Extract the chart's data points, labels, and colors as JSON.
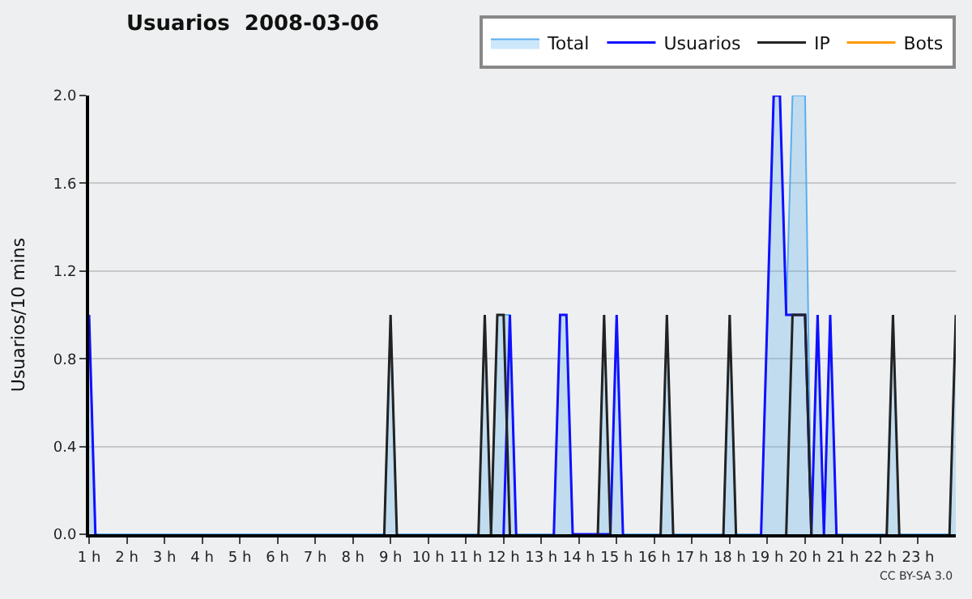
{
  "chart_data": {
    "type": "line",
    "title": "Usuarios  2008-03-06",
    "ylabel": "Usuarios/10 mins",
    "annotations": [
      "CC BY-SA 3.0"
    ],
    "x": [
      1,
      1.167,
      1.333,
      1.5,
      1.667,
      1.833,
      2,
      2.167,
      2.333,
      2.5,
      2.667,
      2.833,
      3,
      3.167,
      3.333,
      3.5,
      3.667,
      3.833,
      4,
      4.167,
      4.333,
      4.5,
      4.667,
      4.833,
      5,
      5.167,
      5.333,
      5.5,
      5.667,
      5.833,
      6,
      6.167,
      6.333,
      6.5,
      6.667,
      6.833,
      7,
      7.167,
      7.333,
      7.5,
      7.667,
      7.833,
      8,
      8.167,
      8.333,
      8.5,
      8.667,
      8.833,
      9,
      9.167,
      9.333,
      9.5,
      9.667,
      9.833,
      10,
      10.167,
      10.333,
      10.5,
      10.667,
      10.833,
      11,
      11.167,
      11.333,
      11.5,
      11.667,
      11.833,
      12,
      12.167,
      12.333,
      12.5,
      12.667,
      12.833,
      13,
      13.167,
      13.333,
      13.5,
      13.667,
      13.833,
      14,
      14.167,
      14.333,
      14.5,
      14.667,
      14.833,
      15,
      15.167,
      15.333,
      15.5,
      15.667,
      15.833,
      16,
      16.167,
      16.333,
      16.5,
      16.667,
      16.833,
      17,
      17.167,
      17.333,
      17.5,
      17.667,
      17.833,
      18,
      18.167,
      18.333,
      18.5,
      18.667,
      18.833,
      19,
      19.167,
      19.333,
      19.5,
      19.667,
      19.833,
      20,
      20.167,
      20.333,
      20.5,
      20.667,
      20.833,
      21,
      21.167,
      21.333,
      21.5,
      21.667,
      21.833,
      22,
      22.167,
      22.333,
      22.5,
      22.667,
      22.833,
      23,
      23.167,
      23.333,
      23.5,
      23.667,
      23.833,
      24
    ],
    "series": [
      {
        "name": "Total",
        "type": "area",
        "color": "#5aaeee",
        "values": [
          1,
          0,
          0,
          0,
          0,
          0,
          0,
          0,
          0,
          0,
          0,
          0,
          0,
          0,
          0,
          0,
          0,
          0,
          0,
          0,
          0,
          0,
          0,
          0,
          0,
          0,
          0,
          0,
          0,
          0,
          0,
          0,
          0,
          0,
          0,
          0,
          0,
          0,
          0,
          0,
          0,
          0,
          0,
          0,
          0,
          0,
          0,
          0,
          1,
          0,
          0,
          0,
          0,
          0,
          0,
          0,
          0,
          0,
          0,
          0,
          0,
          0,
          0,
          1,
          0,
          1,
          1,
          1,
          0,
          0,
          0,
          0,
          0,
          0,
          0,
          1,
          1,
          0,
          0,
          0,
          0,
          0,
          1,
          0,
          1,
          0,
          0,
          0,
          0,
          0,
          0,
          0,
          1,
          0,
          0,
          0,
          0,
          0,
          0,
          0,
          0,
          0,
          1,
          0,
          0,
          0,
          0,
          0,
          1,
          2,
          2,
          1,
          2,
          2,
          2,
          0,
          1,
          0,
          1,
          0,
          0,
          0,
          0,
          0,
          0,
          0,
          0,
          0,
          1,
          0,
          0,
          0,
          0,
          0,
          0,
          0,
          0,
          0,
          1
        ]
      },
      {
        "name": "Usuarios",
        "color": "#1010ff",
        "values": [
          1,
          0,
          null,
          null,
          null,
          null,
          null,
          null,
          null,
          null,
          null,
          null,
          null,
          null,
          null,
          null,
          null,
          null,
          null,
          null,
          null,
          null,
          null,
          null,
          null,
          null,
          null,
          null,
          null,
          null,
          null,
          null,
          null,
          null,
          null,
          null,
          null,
          null,
          null,
          null,
          null,
          null,
          null,
          null,
          null,
          null,
          null,
          null,
          null,
          null,
          null,
          null,
          null,
          null,
          null,
          null,
          null,
          null,
          null,
          null,
          null,
          null,
          null,
          null,
          null,
          null,
          0,
          1,
          0,
          null,
          null,
          null,
          null,
          null,
          0,
          1,
          1,
          0,
          0,
          0,
          0,
          0,
          0,
          0,
          1,
          0,
          null,
          null,
          null,
          null,
          null,
          null,
          null,
          null,
          null,
          null,
          null,
          null,
          null,
          null,
          null,
          null,
          null,
          null,
          null,
          null,
          null,
          0,
          1,
          2,
          2,
          1,
          1,
          1,
          1,
          0,
          1,
          0,
          1,
          0,
          null,
          null,
          null,
          null,
          null,
          null,
          null,
          null,
          null,
          null,
          null,
          null,
          null,
          null,
          null,
          null,
          null,
          null,
          null
        ]
      },
      {
        "name": "IP",
        "color": "#222222",
        "values": [
          null,
          null,
          null,
          null,
          null,
          null,
          null,
          null,
          null,
          null,
          null,
          null,
          null,
          null,
          null,
          null,
          null,
          null,
          null,
          null,
          null,
          null,
          null,
          null,
          null,
          null,
          null,
          null,
          null,
          null,
          null,
          null,
          null,
          null,
          null,
          null,
          null,
          null,
          null,
          null,
          null,
          null,
          null,
          null,
          null,
          null,
          null,
          0,
          1,
          0,
          null,
          null,
          null,
          null,
          null,
          null,
          null,
          null,
          null,
          null,
          null,
          null,
          0,
          1,
          0,
          1,
          1,
          0,
          null,
          null,
          null,
          null,
          null,
          null,
          null,
          null,
          null,
          null,
          null,
          null,
          null,
          0,
          1,
          0,
          null,
          null,
          null,
          null,
          null,
          null,
          null,
          0,
          1,
          0,
          null,
          null,
          null,
          null,
          null,
          null,
          null,
          0,
          1,
          0,
          null,
          null,
          null,
          null,
          null,
          null,
          null,
          0,
          1,
          1,
          1,
          0,
          null,
          null,
          null,
          null,
          null,
          null,
          null,
          null,
          null,
          null,
          null,
          0,
          1,
          0,
          null,
          null,
          null,
          null,
          null,
          null,
          null,
          0,
          1
        ]
      },
      {
        "name": "Bots",
        "color": "#ff9900",
        "values": [
          null,
          null,
          null,
          null,
          null,
          null,
          null,
          null,
          null,
          null,
          null,
          null,
          null,
          null,
          null,
          null,
          null,
          null,
          null,
          null,
          null,
          null,
          null,
          null,
          null,
          null,
          null,
          null,
          null,
          null,
          null,
          null,
          null,
          null,
          null,
          null,
          null,
          null,
          null,
          null,
          null,
          null,
          null,
          null,
          null,
          null,
          null,
          null,
          null,
          null,
          null,
          null,
          null,
          null,
          null,
          null,
          null,
          null,
          null,
          null,
          null,
          null,
          null,
          null,
          null,
          null,
          null,
          null,
          null,
          null,
          null,
          null,
          null,
          null,
          null,
          null,
          null,
          null,
          null,
          null,
          null,
          null,
          null,
          null,
          null,
          null,
          null,
          null,
          null,
          null,
          null,
          null,
          null,
          null,
          null,
          null,
          null,
          null,
          null,
          null,
          null,
          null,
          null,
          null,
          null,
          null,
          null,
          null,
          null,
          null,
          null,
          null,
          null,
          null,
          null,
          null,
          null,
          null,
          null,
          null,
          null,
          null,
          null,
          null,
          null,
          null,
          null,
          null,
          null,
          null,
          null,
          null,
          null,
          null,
          null,
          null,
          null,
          null,
          null
        ]
      }
    ],
    "xlim": [
      1,
      24
    ],
    "xticks": [
      {
        "value": 1,
        "label": "1 h"
      },
      {
        "value": 2,
        "label": "2 h"
      },
      {
        "value": 3,
        "label": "3 h"
      },
      {
        "value": 4,
        "label": "4 h"
      },
      {
        "value": 5,
        "label": "5 h"
      },
      {
        "value": 6,
        "label": "6 h"
      },
      {
        "value": 7,
        "label": "7 h"
      },
      {
        "value": 8,
        "label": "8 h"
      },
      {
        "value": 9,
        "label": "9 h"
      },
      {
        "value": 10,
        "label": "10 h"
      },
      {
        "value": 11,
        "label": "11 h"
      },
      {
        "value": 12,
        "label": "12 h"
      },
      {
        "value": 13,
        "label": "13 h"
      },
      {
        "value": 14,
        "label": "14 h"
      },
      {
        "value": 15,
        "label": "15 h"
      },
      {
        "value": 16,
        "label": "16 h"
      },
      {
        "value": 17,
        "label": "17 h"
      },
      {
        "value": 18,
        "label": "18 h"
      },
      {
        "value": 19,
        "label": "19 h"
      },
      {
        "value": 20,
        "label": "20 h"
      },
      {
        "value": 21,
        "label": "21 h"
      },
      {
        "value": 22,
        "label": "22 h"
      },
      {
        "value": 23,
        "label": "23 h"
      }
    ],
    "ylim": [
      0,
      2
    ],
    "yticks": [
      {
        "value": 0,
        "label": "0.0"
      },
      {
        "value": 0.4,
        "label": "0.4"
      },
      {
        "value": 0.8,
        "label": "0.8"
      },
      {
        "value": 1.2,
        "label": "1.2"
      },
      {
        "value": 1.6,
        "label": "1.6"
      },
      {
        "value": 2,
        "label": "2.0"
      }
    ],
    "grid": "y",
    "legend": "top right",
    "marker": "none",
    "line_style": "solid"
  }
}
